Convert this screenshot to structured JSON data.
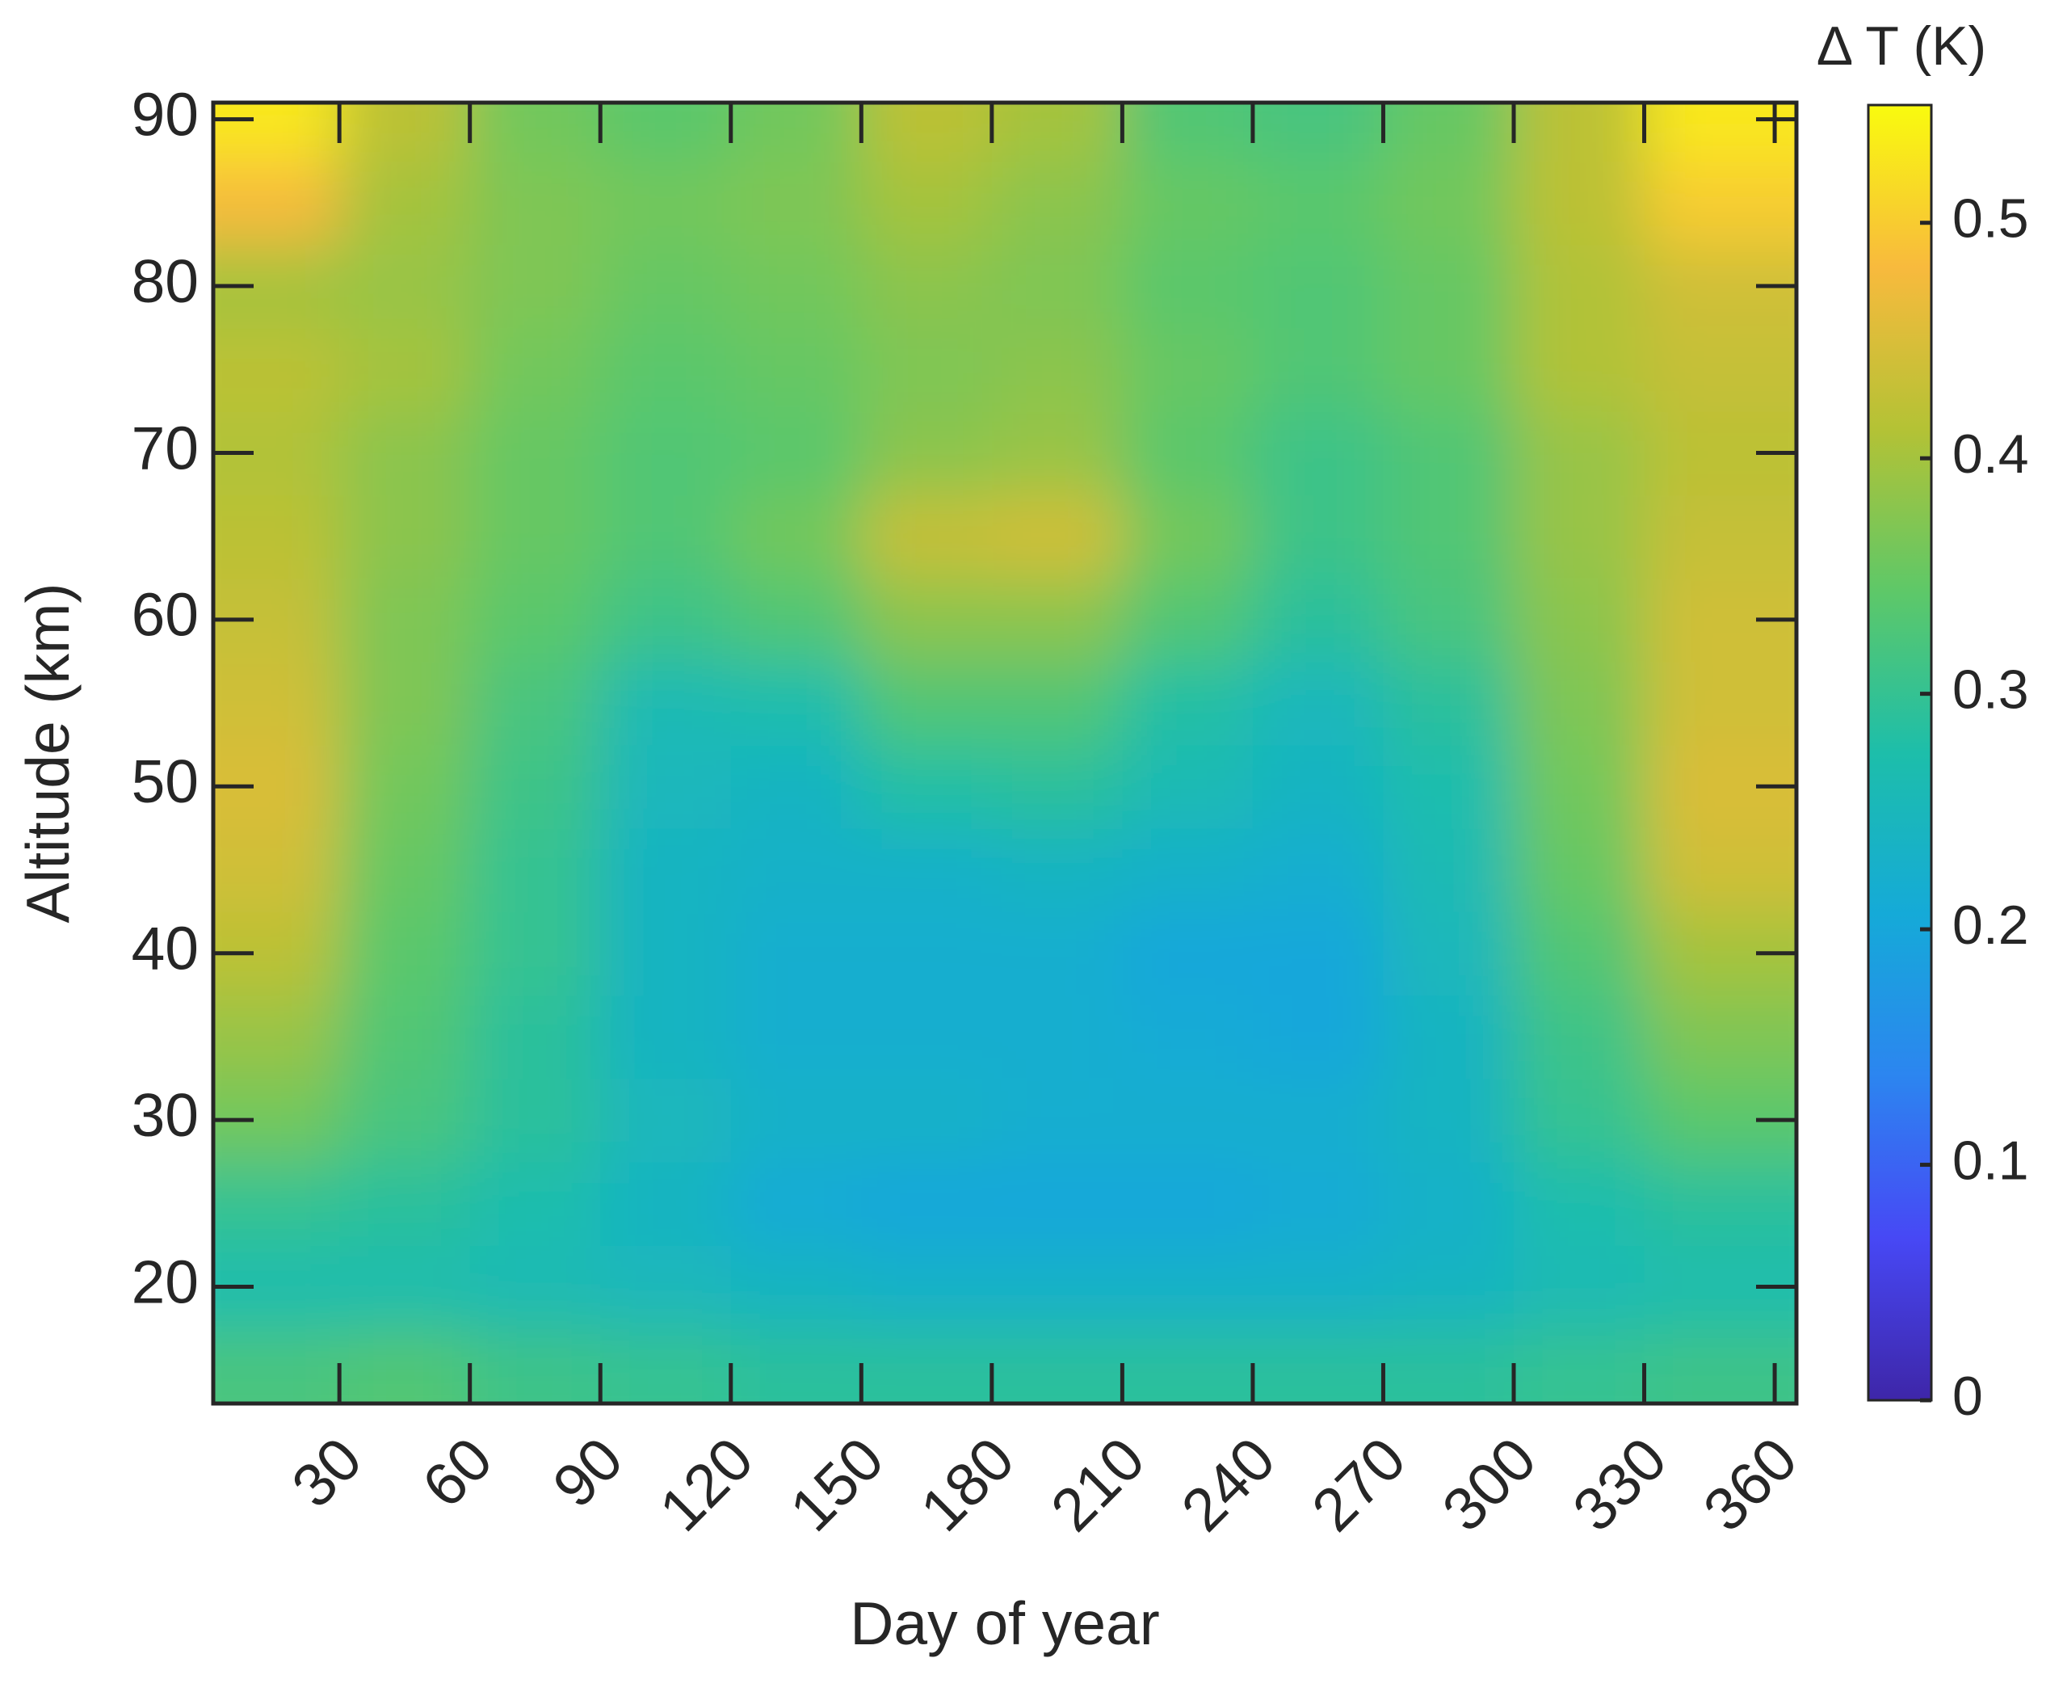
{
  "chart_data": {
    "type": "heatmap",
    "xlabel": "Day of year",
    "ylabel": "Altitude (km)",
    "colorbar_label": "Δ T (K)",
    "x": [
      15,
      45,
      75,
      105,
      135,
      165,
      195,
      225,
      255,
      285,
      315,
      345
    ],
    "y": [
      15,
      20,
      25,
      30,
      35,
      40,
      45,
      50,
      55,
      60,
      65,
      70,
      75,
      80,
      85,
      90
    ],
    "z": [
      [
        0.32,
        0.33,
        0.31,
        0.3,
        0.29,
        0.29,
        0.29,
        0.29,
        0.29,
        0.29,
        0.3,
        0.31
      ],
      [
        0.27,
        0.27,
        0.26,
        0.25,
        0.24,
        0.23,
        0.23,
        0.23,
        0.23,
        0.24,
        0.26,
        0.27
      ],
      [
        0.3,
        0.29,
        0.27,
        0.24,
        0.21,
        0.2,
        0.2,
        0.2,
        0.21,
        0.23,
        0.27,
        0.29
      ],
      [
        0.36,
        0.32,
        0.29,
        0.25,
        0.23,
        0.23,
        0.22,
        0.22,
        0.22,
        0.24,
        0.3,
        0.34
      ],
      [
        0.39,
        0.33,
        0.29,
        0.24,
        0.22,
        0.22,
        0.22,
        0.21,
        0.2,
        0.24,
        0.31,
        0.37
      ],
      [
        0.42,
        0.34,
        0.3,
        0.24,
        0.22,
        0.22,
        0.22,
        0.2,
        0.2,
        0.25,
        0.33,
        0.4
      ],
      [
        0.44,
        0.35,
        0.3,
        0.24,
        0.23,
        0.23,
        0.24,
        0.23,
        0.22,
        0.26,
        0.35,
        0.44
      ],
      [
        0.45,
        0.36,
        0.31,
        0.25,
        0.24,
        0.28,
        0.29,
        0.26,
        0.24,
        0.27,
        0.36,
        0.45
      ],
      [
        0.44,
        0.37,
        0.32,
        0.26,
        0.27,
        0.33,
        0.33,
        0.28,
        0.25,
        0.29,
        0.37,
        0.44
      ],
      [
        0.43,
        0.37,
        0.34,
        0.31,
        0.33,
        0.38,
        0.38,
        0.33,
        0.29,
        0.32,
        0.38,
        0.44
      ],
      [
        0.42,
        0.38,
        0.35,
        0.33,
        0.36,
        0.43,
        0.44,
        0.36,
        0.31,
        0.33,
        0.39,
        0.43
      ],
      [
        0.41,
        0.38,
        0.35,
        0.33,
        0.34,
        0.38,
        0.39,
        0.34,
        0.31,
        0.33,
        0.39,
        0.42
      ],
      [
        0.42,
        0.4,
        0.36,
        0.34,
        0.35,
        0.37,
        0.38,
        0.35,
        0.33,
        0.35,
        0.41,
        0.43
      ],
      [
        0.4,
        0.39,
        0.37,
        0.35,
        0.36,
        0.38,
        0.37,
        0.34,
        0.33,
        0.35,
        0.41,
        0.44
      ],
      [
        0.48,
        0.4,
        0.37,
        0.36,
        0.37,
        0.4,
        0.38,
        0.35,
        0.34,
        0.36,
        0.42,
        0.5
      ],
      [
        0.53,
        0.42,
        0.36,
        0.34,
        0.36,
        0.42,
        0.4,
        0.33,
        0.32,
        0.35,
        0.42,
        0.53
      ]
    ],
    "xlim": [
      1,
      365
    ],
    "xticks": [
      30,
      60,
      90,
      120,
      150,
      180,
      210,
      240,
      270,
      300,
      330,
      360
    ],
    "ylim": [
      13,
      91
    ],
    "yticks": [
      20,
      30,
      40,
      50,
      60,
      70,
      80,
      90
    ],
    "clim": [
      0,
      0.55
    ],
    "cticks": [
      0,
      0.1,
      0.2,
      0.3,
      0.4,
      0.5
    ],
    "colorscale": [
      "#3e26a8",
      "#4748f5",
      "#2c85f0",
      "#15aad8",
      "#1dbeaa",
      "#5ec868",
      "#b4c235",
      "#f8ba3d",
      "#f9fb0e"
    ]
  }
}
